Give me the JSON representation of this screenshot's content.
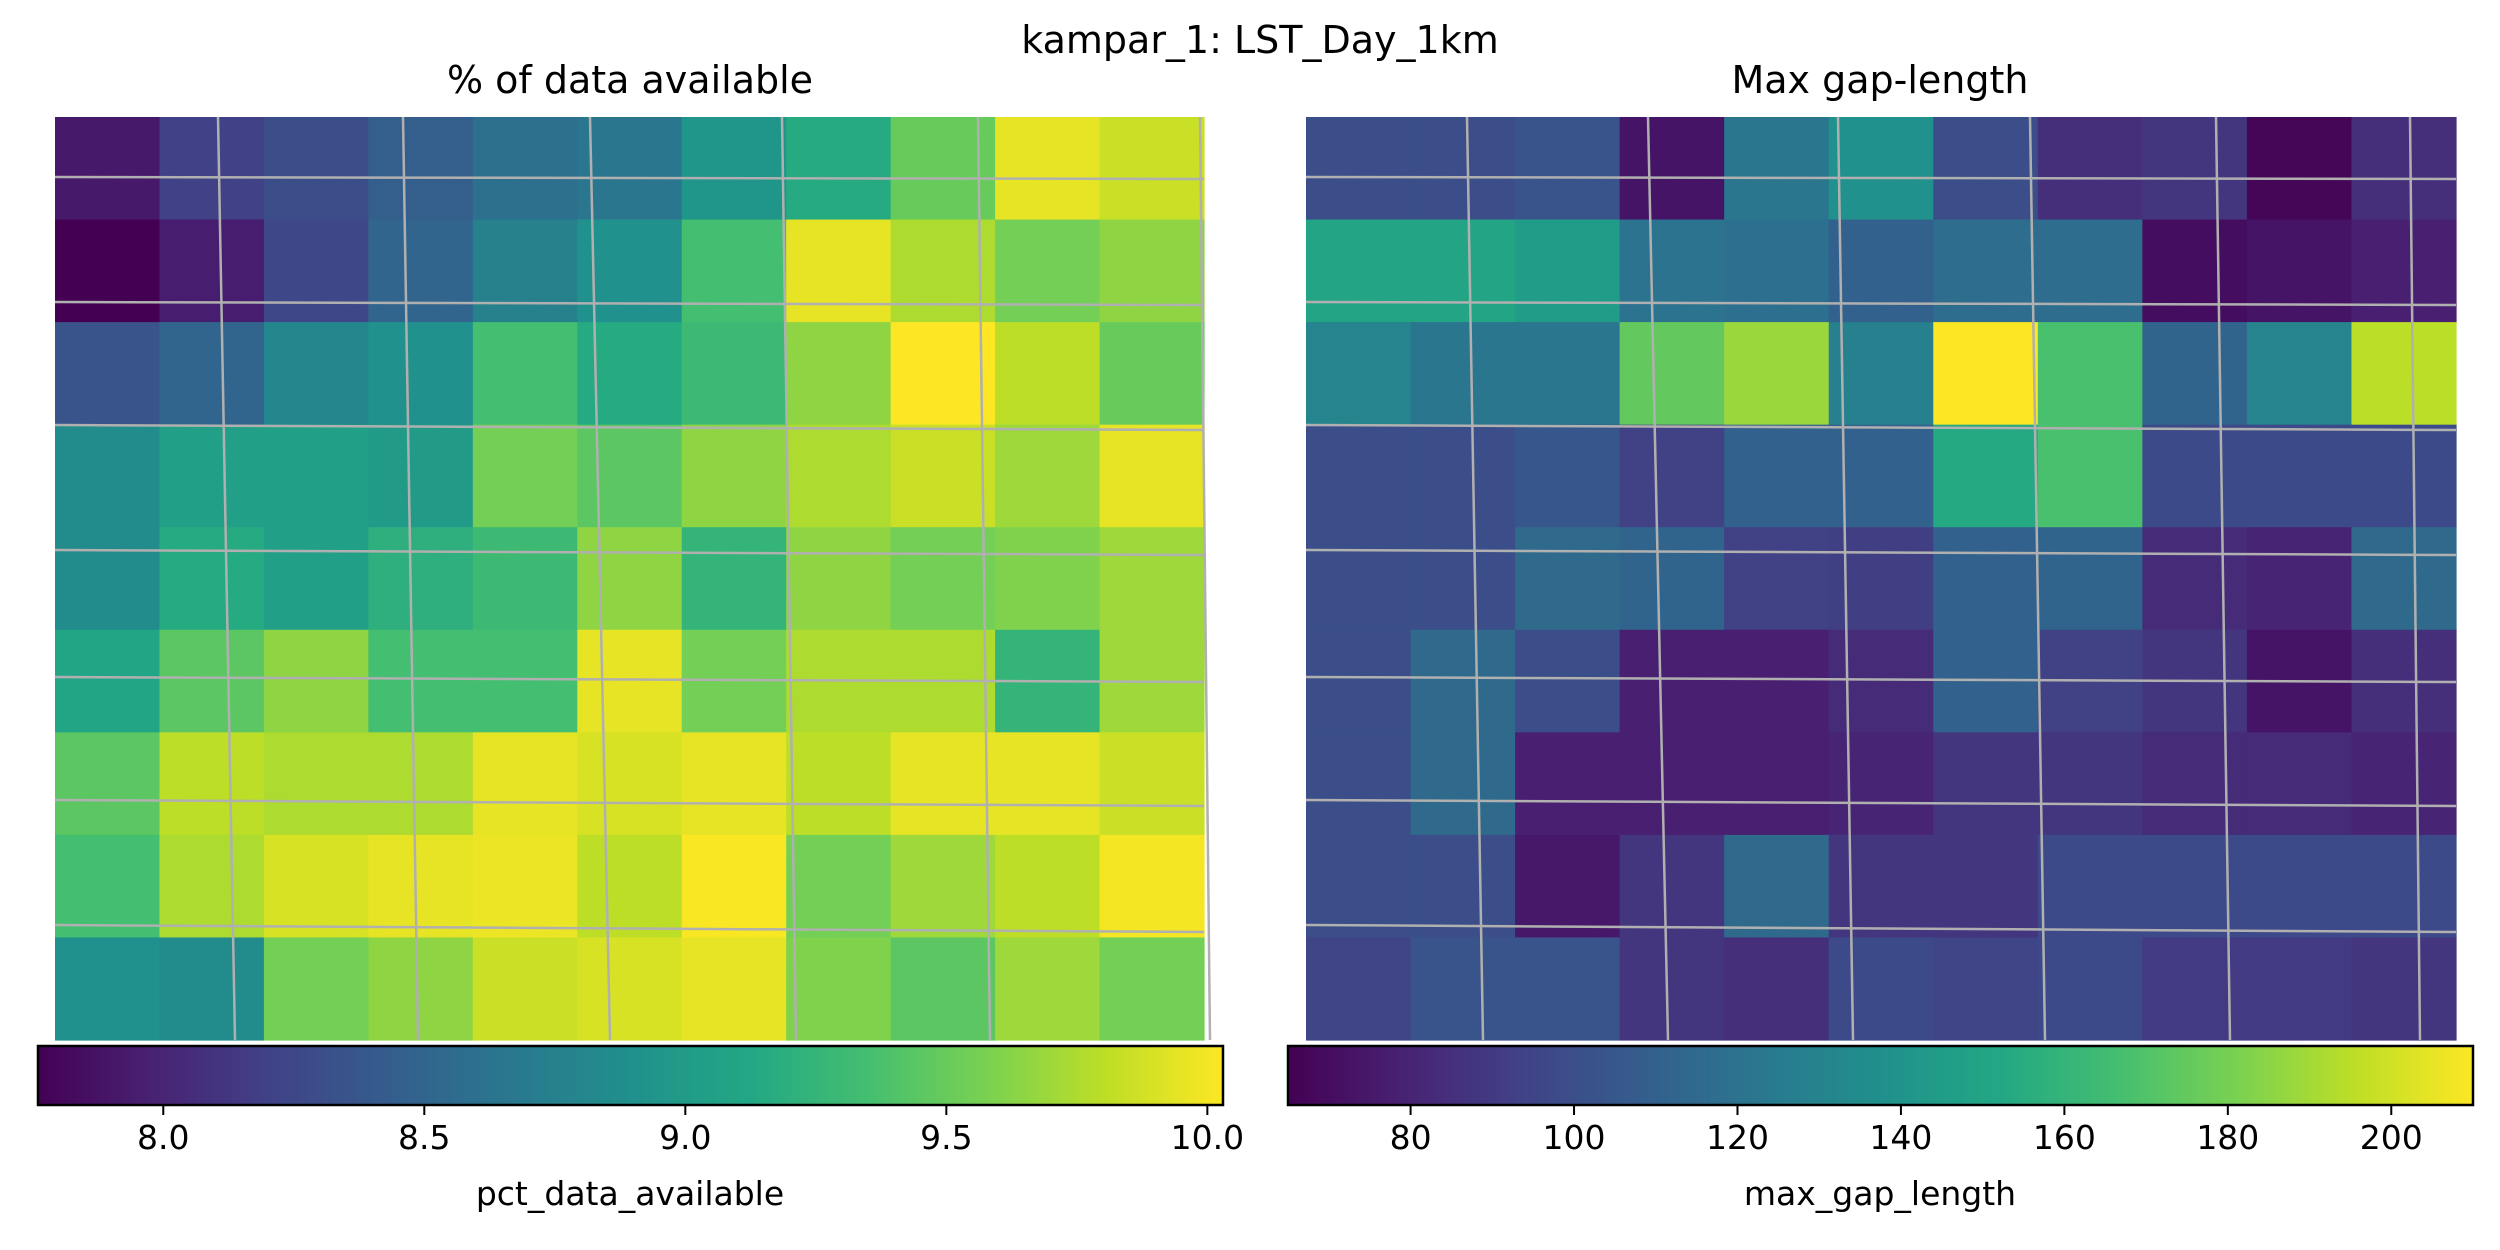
{
  "figure": {
    "title": "kampar_1: LST_Day_1km"
  },
  "chart_data": [
    {
      "type": "heatmap",
      "title": "% of data available",
      "colorbar_label": "pct_data_available",
      "colormap": "viridis",
      "vmin": 7.76,
      "vmax": 10.03,
      "colorbar_ticks": [
        "8.0",
        "8.5",
        "9.0",
        "9.5",
        "10.0"
      ],
      "colorbar_tick_values": [
        8.0,
        8.5,
        9.0,
        9.5,
        10.0
      ],
      "grid": true,
      "rows": 9,
      "cols": 11,
      "values": [
        [
          7.92,
          8.2,
          8.3,
          8.45,
          8.6,
          8.65,
          8.95,
          9.15,
          9.5,
          9.95,
          9.85
        ],
        [
          7.76,
          7.95,
          8.25,
          8.5,
          8.75,
          8.9,
          9.35,
          9.95,
          9.75,
          9.55,
          9.65
        ],
        [
          8.35,
          8.5,
          8.8,
          8.9,
          9.35,
          9.15,
          9.3,
          9.65,
          10.03,
          9.8,
          9.5
        ],
        [
          8.85,
          9.05,
          9.05,
          9.0,
          9.55,
          9.45,
          9.65,
          9.75,
          9.85,
          9.7,
          9.95
        ],
        [
          8.85,
          9.15,
          9.05,
          9.2,
          9.3,
          9.65,
          9.25,
          9.65,
          9.55,
          9.6,
          9.7
        ],
        [
          9.1,
          9.45,
          9.65,
          9.35,
          9.35,
          9.95,
          9.55,
          9.75,
          9.75,
          9.25,
          9.7
        ],
        [
          9.45,
          9.8,
          9.75,
          9.75,
          9.95,
          9.9,
          9.95,
          9.8,
          9.95,
          9.95,
          9.85
        ],
        [
          9.35,
          9.75,
          9.9,
          9.95,
          9.97,
          9.8,
          10.02,
          9.55,
          9.7,
          9.8,
          10.0
        ],
        [
          8.9,
          8.85,
          9.55,
          9.65,
          9.85,
          9.9,
          9.95,
          9.6,
          9.45,
          9.7,
          9.55
        ]
      ]
    },
    {
      "type": "heatmap",
      "title": "Max gap-length",
      "colorbar_label": "max_gap_length",
      "colormap": "viridis",
      "vmin": 65,
      "vmax": 210,
      "colorbar_ticks": [
        "80",
        "100",
        "120",
        "140",
        "160",
        "180",
        "200"
      ],
      "colorbar_tick_values": [
        80,
        100,
        120,
        140,
        160,
        180,
        200
      ],
      "grid": true,
      "rows": 9,
      "cols": 11,
      "values": [
        [
          100,
          100,
          103,
          73,
          122,
          138,
          100,
          85,
          88,
          67,
          85
        ],
        [
          150,
          150,
          145,
          120,
          118,
          110,
          117,
          117,
          70,
          73,
          78
        ],
        [
          130,
          122,
          122,
          175,
          188,
          128,
          210,
          168,
          112,
          130,
          195
        ],
        [
          100,
          100,
          105,
          93,
          110,
          110,
          153,
          168,
          98,
          98,
          98
        ],
        [
          100,
          100,
          115,
          112,
          93,
          92,
          110,
          112,
          83,
          80,
          115
        ],
        [
          100,
          115,
          100,
          78,
          78,
          83,
          110,
          93,
          88,
          73,
          85
        ],
        [
          100,
          115,
          78,
          78,
          78,
          80,
          88,
          88,
          83,
          83,
          80
        ],
        [
          100,
          100,
          75,
          88,
          115,
          88,
          88,
          98,
          98,
          98,
          98
        ],
        [
          95,
          103,
          103,
          88,
          85,
          98,
          95,
          98,
          90,
          90,
          88
        ]
      ]
    }
  ]
}
